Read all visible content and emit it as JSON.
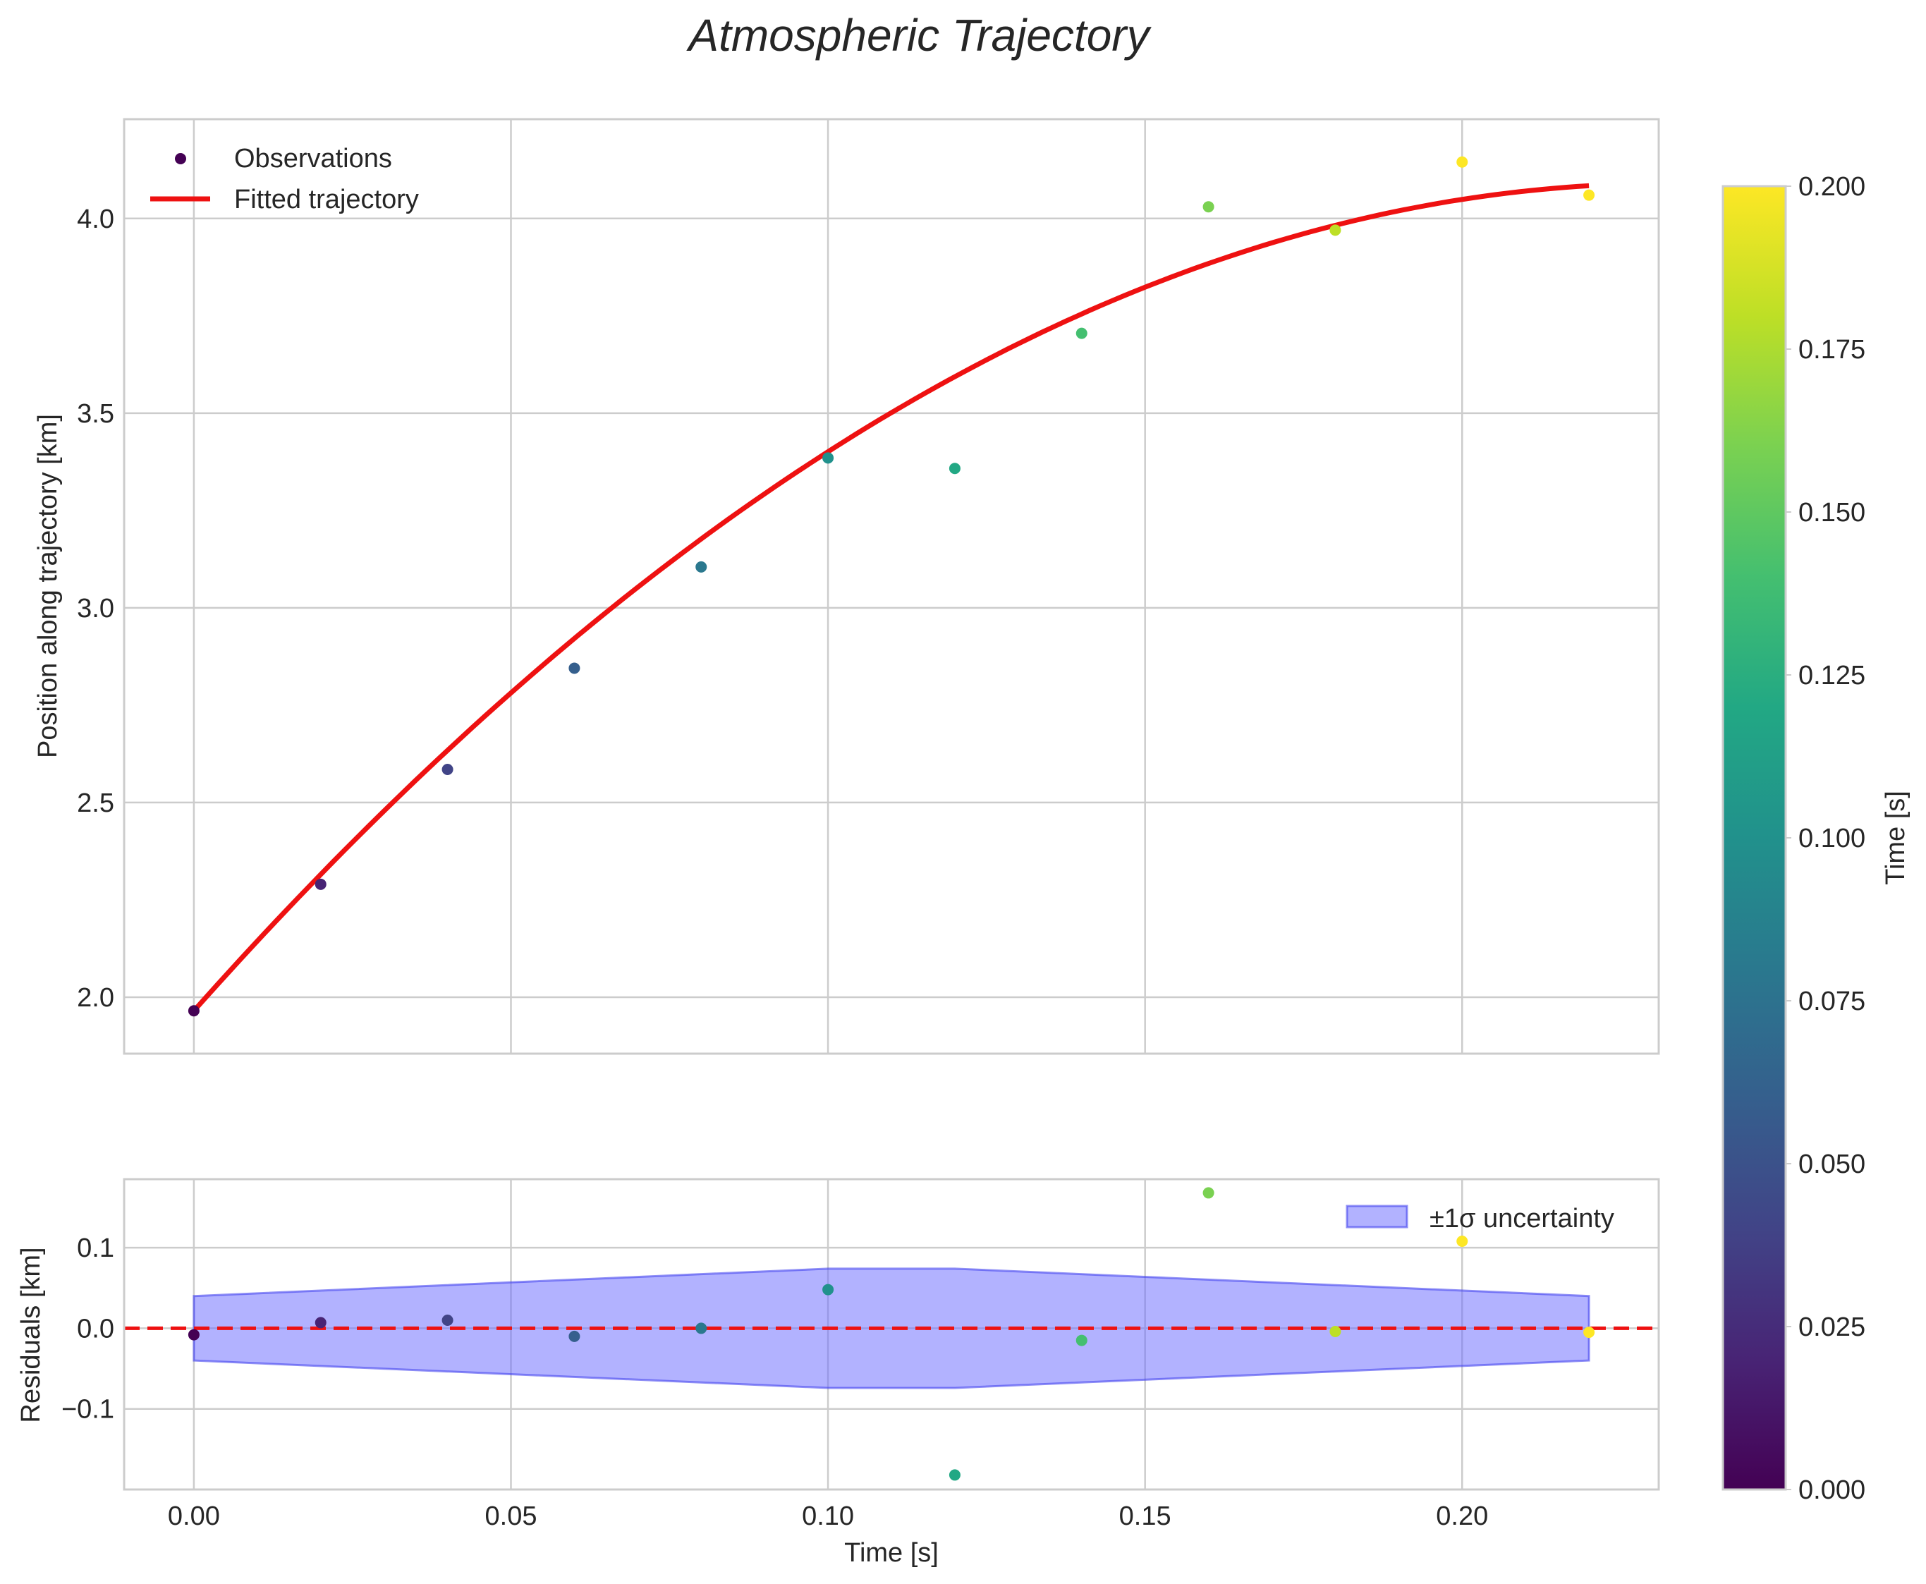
{
  "title": "Atmospheric Trajectory",
  "chart_data": [
    {
      "type": "scatter",
      "panel": "main",
      "ylabel": "Position along trajectory [km]",
      "xlim": [
        -0.011,
        0.231
      ],
      "ylim": [
        1.855,
        4.255
      ],
      "xticks": [
        0.0,
        0.05,
        0.1,
        0.15,
        0.2
      ],
      "xtick_labels": [
        "0.00",
        "0.05",
        "0.10",
        "0.15",
        "0.20"
      ],
      "yticks": [
        2.0,
        2.5,
        3.0,
        3.5,
        4.0
      ],
      "ytick_labels": [
        "2.0",
        "2.5",
        "3.0",
        "3.5",
        "4.0"
      ],
      "grid": true,
      "legend_position": "top-left",
      "series": [
        {
          "name": "Observations",
          "kind": "scatter",
          "x": [
            0.0,
            0.02,
            0.04,
            0.06,
            0.08,
            0.1,
            0.12,
            0.14,
            0.16,
            0.18,
            0.2,
            0.22
          ],
          "y": [
            1.965,
            2.29,
            2.585,
            2.845,
            3.105,
            3.385,
            3.358,
            3.705,
            4.03,
            3.97,
            4.145,
            4.06
          ],
          "colormap": "viridis"
        },
        {
          "name": "Fitted trajectory",
          "kind": "line",
          "color": "#ee1111",
          "model": "quadratic",
          "coefficients": {
            "a": 1.965,
            "b": 18.3,
            "c": -39.4
          },
          "x_range": [
            0.0,
            0.22
          ]
        }
      ]
    },
    {
      "type": "scatter",
      "panel": "residuals",
      "xlabel": "Time [s]",
      "ylabel": "Residuals [km]",
      "xlim": [
        -0.011,
        0.231
      ],
      "ylim": [
        -0.2,
        0.185
      ],
      "xticks": [
        0.0,
        0.05,
        0.1,
        0.15,
        0.2
      ],
      "xtick_labels": [
        "0.00",
        "0.05",
        "0.10",
        "0.15",
        "0.20"
      ],
      "yticks": [
        -0.1,
        0.0,
        0.1
      ],
      "ytick_labels": [
        "−0.1",
        "0.0",
        "0.1"
      ],
      "grid": true,
      "legend_position": "top-right",
      "zero_line_color": "#ee1111",
      "series": [
        {
          "name": "Residuals",
          "kind": "scatter",
          "x": [
            0.0,
            0.02,
            0.04,
            0.06,
            0.08,
            0.1,
            0.12,
            0.14,
            0.16,
            0.18,
            0.2,
            0.22
          ],
          "y": [
            -0.008,
            0.007,
            0.01,
            -0.01,
            0.0,
            0.048,
            -0.182,
            -0.015,
            0.168,
            -0.004,
            0.108,
            -0.005
          ],
          "colormap": "viridis"
        },
        {
          "name": "±1σ uncertainty",
          "kind": "band",
          "color": "#6666ff",
          "x": [
            0.0,
            0.1,
            0.12,
            0.22
          ],
          "upper": [
            0.04,
            0.074,
            0.074,
            0.04
          ],
          "lower": [
            -0.04,
            -0.074,
            -0.074,
            -0.04
          ]
        }
      ]
    },
    {
      "type": "colorbar",
      "label": "Time [s]",
      "colormap": "viridis",
      "range": [
        0.0,
        0.2
      ],
      "ticks": [
        0.0,
        0.025,
        0.05,
        0.075,
        0.1,
        0.125,
        0.15,
        0.175,
        0.2
      ],
      "tick_labels": [
        "0.000",
        "0.025",
        "0.050",
        "0.075",
        "0.100",
        "0.125",
        "0.150",
        "0.175",
        "0.200"
      ]
    }
  ]
}
